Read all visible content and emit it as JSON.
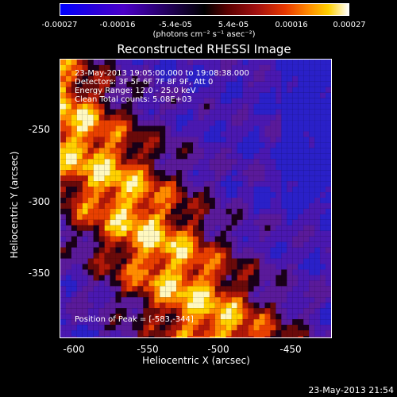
{
  "colorbar": {
    "ticks": [
      "-0.00027",
      "-0.00016",
      "-5.4e-05",
      "5.4e-05",
      "0.00016",
      "0.00027"
    ],
    "units": "(photons cm⁻² s⁻¹ asec⁻²)"
  },
  "plot": {
    "title": "Reconstructed RHESSI Image",
    "time_range": "23-May-2013 19:05:00.000 to 19:08:38.000",
    "detectors": "Detectors: 3F 5F 6F 7F 8F 9F, Att 0",
    "energy": "Energy Range: 12.0 - 25.0 keV",
    "method": "Clean     Total counts: 5.08E+03",
    "peak": "Position of Peak = [-583,-344]",
    "xlabel": "Heliocentric X (arcsec)",
    "ylabel": "Heliocentric Y (arcsec)",
    "xticks": [
      "-600",
      "-550",
      "-500",
      "-450"
    ],
    "yticks": [
      "-250",
      "-300",
      "-350"
    ]
  },
  "footer": {
    "timestamp": "23-May-2013 21:54"
  }
}
